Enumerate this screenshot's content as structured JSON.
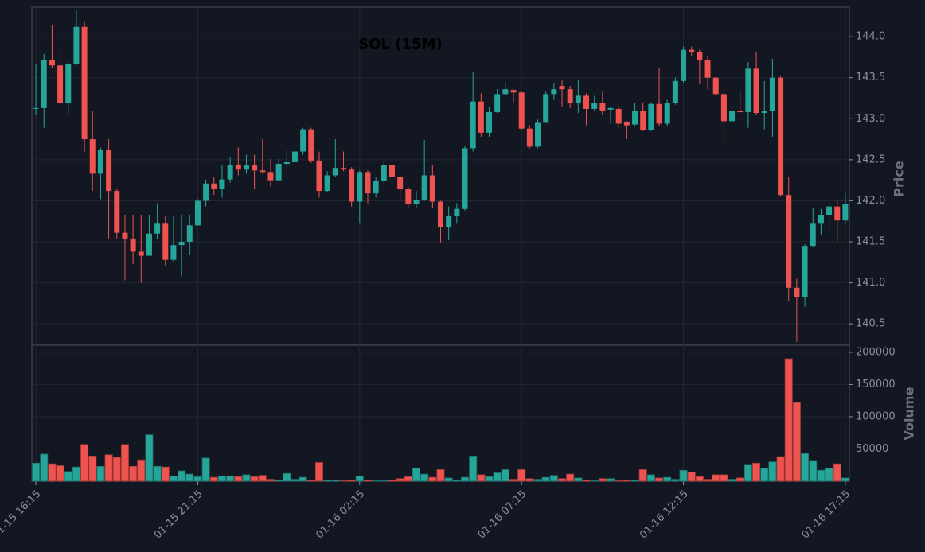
{
  "chart_data": [
    {
      "type": "candlestick",
      "title": "SOL (15M)",
      "ylabel": "Price",
      "up_color": "#26a69a",
      "down_color": "#ef5350",
      "grid": true,
      "xlim": [
        -0.5,
        100.5
      ],
      "xticks": [
        {
          "value": 0,
          "label": "01-15 16:15"
        },
        {
          "value": 20,
          "label": "01-15 21:15"
        },
        {
          "value": 40,
          "label": "01-16 02:15"
        },
        {
          "value": 60,
          "label": "01-16 07:15"
        },
        {
          "value": 80,
          "label": "01-16 12:15"
        },
        {
          "value": 100,
          "label": "01-16 17:15"
        }
      ],
      "ylim": [
        140.24,
        144.36
      ],
      "yticks": [
        140.5,
        {
          "value": 141,
          "label": "141.0"
        },
        141.5,
        {
          "value": 142,
          "label": "142.0"
        },
        142.5,
        {
          "value": 143,
          "label": "143.0"
        },
        143.5,
        {
          "value": 144,
          "label": "144.0"
        }
      ],
      "open": [
        143.12,
        143.13,
        143.72,
        143.65,
        143.19,
        143.67,
        144.12,
        142.75,
        142.33,
        142.62,
        142.12,
        141.61,
        141.54,
        141.38,
        141.33,
        141.6,
        141.73,
        141.28,
        141.46,
        141.5,
        141.7,
        142.0,
        142.21,
        142.15,
        142.26,
        142.44,
        142.38,
        142.43,
        142.37,
        142.35,
        142.25,
        142.45,
        142.47,
        142.6,
        142.87,
        142.49,
        142.12,
        142.31,
        142.4,
        142.38,
        141.99,
        142.35,
        142.09,
        142.24,
        142.44,
        142.29,
        142.14,
        141.96,
        142.01,
        142.31,
        141.99,
        141.68,
        141.82,
        141.9,
        142.64,
        143.21,
        142.83,
        143.08,
        143.3,
        143.35,
        143.32,
        142.88,
        142.66,
        142.95,
        143.3,
        143.4,
        143.36,
        143.19,
        143.28,
        143.12,
        143.19,
        143.11,
        143.12,
        142.96,
        142.93,
        143.1,
        142.86,
        143.18,
        142.94,
        143.19,
        143.46,
        143.84,
        143.81,
        143.71,
        143.5,
        143.3,
        142.97,
        143.1,
        143.08,
        143.61,
        143.07,
        143.09,
        143.5,
        142.07,
        140.94,
        140.83,
        141.45,
        141.73,
        141.83,
        141.93,
        141.76
      ],
      "high": [
        143.67,
        143.79,
        144.14,
        143.89,
        143.7,
        144.32,
        144.18,
        143.09,
        142.65,
        142.75,
        142.15,
        141.83,
        141.83,
        141.83,
        141.83,
        141.97,
        141.81,
        141.81,
        141.83,
        141.83,
        142.02,
        142.26,
        142.29,
        142.43,
        142.53,
        142.65,
        142.56,
        142.56,
        142.75,
        142.51,
        142.51,
        142.62,
        142.65,
        142.89,
        142.89,
        142.6,
        142.36,
        142.75,
        142.6,
        142.41,
        142.37,
        142.37,
        142.29,
        142.48,
        142.48,
        142.31,
        142.17,
        142.12,
        142.74,
        142.43,
        142.0,
        141.93,
        141.97,
        142.67,
        143.57,
        143.31,
        143.14,
        143.36,
        143.44,
        143.36,
        143.33,
        142.92,
        142.99,
        143.33,
        143.44,
        143.48,
        143.4,
        143.48,
        143.31,
        143.28,
        143.33,
        143.14,
        143.16,
        142.97,
        143.19,
        143.2,
        143.2,
        143.62,
        143.23,
        143.5,
        143.88,
        143.88,
        143.84,
        143.77,
        143.52,
        143.35,
        143.19,
        143.33,
        143.69,
        143.82,
        143.46,
        143.73,
        143.52,
        142.29,
        141.05,
        141.47,
        141.91,
        141.9,
        142.02,
        142.02,
        142.09
      ],
      "low": [
        143.04,
        142.89,
        143.62,
        143.16,
        143.04,
        143.65,
        142.6,
        142.12,
        142.02,
        141.54,
        141.54,
        141.03,
        141.23,
        141.0,
        141.33,
        141.54,
        141.2,
        141.25,
        141.08,
        141.34,
        141.7,
        141.93,
        142.07,
        142.04,
        142.22,
        142.31,
        142.33,
        142.14,
        142.33,
        142.17,
        142.24,
        142.41,
        142.46,
        142.56,
        142.46,
        142.04,
        142.1,
        142.29,
        142.36,
        141.93,
        141.73,
        141.97,
        142.04,
        142.2,
        142.25,
        142.02,
        141.91,
        141.91,
        142.0,
        141.91,
        141.49,
        141.52,
        141.73,
        141.88,
        142.6,
        142.78,
        142.78,
        143.07,
        143.28,
        143.2,
        142.87,
        142.64,
        142.64,
        142.96,
        143.23,
        143.14,
        143.13,
        143.07,
        142.92,
        143.09,
        143.04,
        142.94,
        142.89,
        142.75,
        142.91,
        142.85,
        142.85,
        142.91,
        142.91,
        143.17,
        143.44,
        143.77,
        143.42,
        143.36,
        143.28,
        142.7,
        142.94,
        143.07,
        142.89,
        143.04,
        142.87,
        142.78,
        142.05,
        140.78,
        140.28,
        140.71,
        141.44,
        141.59,
        141.63,
        141.5,
        141.73
      ],
      "close": [
        143.13,
        143.72,
        143.65,
        143.19,
        143.67,
        144.12,
        142.75,
        142.33,
        142.62,
        142.12,
        141.61,
        141.54,
        141.38,
        141.33,
        141.6,
        141.73,
        141.28,
        141.46,
        141.5,
        141.7,
        142.0,
        142.21,
        142.15,
        142.26,
        142.44,
        142.38,
        142.43,
        142.37,
        142.35,
        142.25,
        142.45,
        142.47,
        142.6,
        142.87,
        142.49,
        142.12,
        142.31,
        142.4,
        142.38,
        141.99,
        142.35,
        142.09,
        142.24,
        142.44,
        142.29,
        142.14,
        141.96,
        142.01,
        142.31,
        141.99,
        141.68,
        141.82,
        141.9,
        142.64,
        143.21,
        142.83,
        143.08,
        143.3,
        143.36,
        143.32,
        142.88,
        142.66,
        142.95,
        143.3,
        143.36,
        143.36,
        143.19,
        143.28,
        143.12,
        143.19,
        143.1,
        143.13,
        142.94,
        142.92,
        143.1,
        142.86,
        143.18,
        142.94,
        143.19,
        143.46,
        143.84,
        143.81,
        143.71,
        143.5,
        143.3,
        142.97,
        143.09,
        143.08,
        143.61,
        143.07,
        143.09,
        143.5,
        142.07,
        140.94,
        140.83,
        141.45,
        141.73,
        141.83,
        141.93,
        141.76,
        141.96
      ]
    },
    {
      "type": "bar",
      "ylabel": "Volume",
      "ylim": [
        0,
        211000
      ],
      "yticks": [
        50000,
        100000,
        150000,
        200000
      ],
      "values": [
        28000,
        42000,
        27000,
        24000,
        15000,
        22000,
        57000,
        39000,
        23000,
        41000,
        37000,
        57000,
        23000,
        33000,
        72000,
        23000,
        22000,
        8000,
        16000,
        11000,
        7000,
        36000,
        6000,
        8000,
        8000,
        7000,
        10000,
        7000,
        9000,
        3000,
        2000,
        12000,
        3000,
        6000,
        2000,
        29000,
        2000,
        2000,
        1000,
        2000,
        8000,
        2000,
        1000,
        1000,
        2000,
        4000,
        7000,
        20000,
        11000,
        6000,
        18000,
        5000,
        2000,
        6000,
        39000,
        10000,
        7000,
        13000,
        18000,
        3000,
        18000,
        4000,
        3000,
        6000,
        9000,
        4000,
        11000,
        5000,
        2000,
        1000,
        4000,
        4000,
        1000,
        2000,
        2000,
        18000,
        10000,
        5000,
        6000,
        3000,
        17000,
        14000,
        7000,
        3000,
        10000,
        10000,
        3000,
        5000,
        26000,
        28000,
        20000,
        30000,
        38000,
        190000,
        122000,
        43000,
        32000,
        17000,
        20000,
        27000,
        5000
      ]
    }
  ]
}
